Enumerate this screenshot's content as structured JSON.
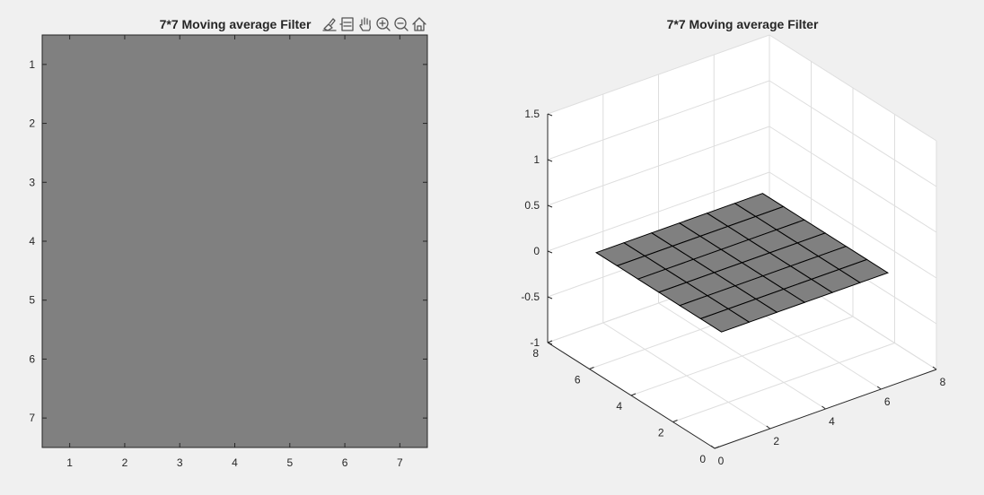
{
  "colors": {
    "figure_bg": "#f0f0f0",
    "image_fill": "#808080",
    "surface_fill": "#808080",
    "surface_edge": "#000000",
    "axes_bg": "#ffffff",
    "grid": "#dedede",
    "text": "#262626"
  },
  "toolbar": {
    "icons": [
      "brush-icon",
      "datatip-icon",
      "pan-hand-icon",
      "zoom-in-icon",
      "zoom-out-icon",
      "home-icon"
    ]
  },
  "chart_data": [
    {
      "type": "heatmap",
      "title": "7*7 Moving average Filter",
      "xlabel": "",
      "ylabel": "",
      "x_ticks": [
        "1",
        "2",
        "3",
        "4",
        "5",
        "6",
        "7"
      ],
      "y_ticks": [
        "1",
        "2",
        "3",
        "4",
        "5",
        "6",
        "7"
      ],
      "xlim": [
        0.5,
        7.5
      ],
      "ylim": [
        0.5,
        7.5
      ],
      "y_direction": "reverse",
      "colormap": "gray",
      "values": [
        [
          0.0204,
          0.0204,
          0.0204,
          0.0204,
          0.0204,
          0.0204,
          0.0204
        ],
        [
          0.0204,
          0.0204,
          0.0204,
          0.0204,
          0.0204,
          0.0204,
          0.0204
        ],
        [
          0.0204,
          0.0204,
          0.0204,
          0.0204,
          0.0204,
          0.0204,
          0.0204
        ],
        [
          0.0204,
          0.0204,
          0.0204,
          0.0204,
          0.0204,
          0.0204,
          0.0204
        ],
        [
          0.0204,
          0.0204,
          0.0204,
          0.0204,
          0.0204,
          0.0204,
          0.0204
        ],
        [
          0.0204,
          0.0204,
          0.0204,
          0.0204,
          0.0204,
          0.0204,
          0.0204
        ],
        [
          0.0204,
          0.0204,
          0.0204,
          0.0204,
          0.0204,
          0.0204,
          0.0204
        ]
      ]
    },
    {
      "type": "surface",
      "title": "7*7 Moving average Filter",
      "x": [
        1,
        2,
        3,
        4,
        5,
        6,
        7
      ],
      "y": [
        1,
        2,
        3,
        4,
        5,
        6,
        7
      ],
      "z_value": 0.0204,
      "xlim": [
        0,
        8
      ],
      "ylim": [
        0,
        8
      ],
      "zlim": [
        -1,
        1.5
      ],
      "x_ticks": [
        "0",
        "2",
        "4",
        "6",
        "8"
      ],
      "y_ticks": [
        "0",
        "2",
        "4",
        "6",
        "8"
      ],
      "z_ticks": [
        "-1",
        "-0.5",
        "0",
        "0.5",
        "1",
        "1.5"
      ],
      "grid": true,
      "view": "default 3-D"
    }
  ]
}
